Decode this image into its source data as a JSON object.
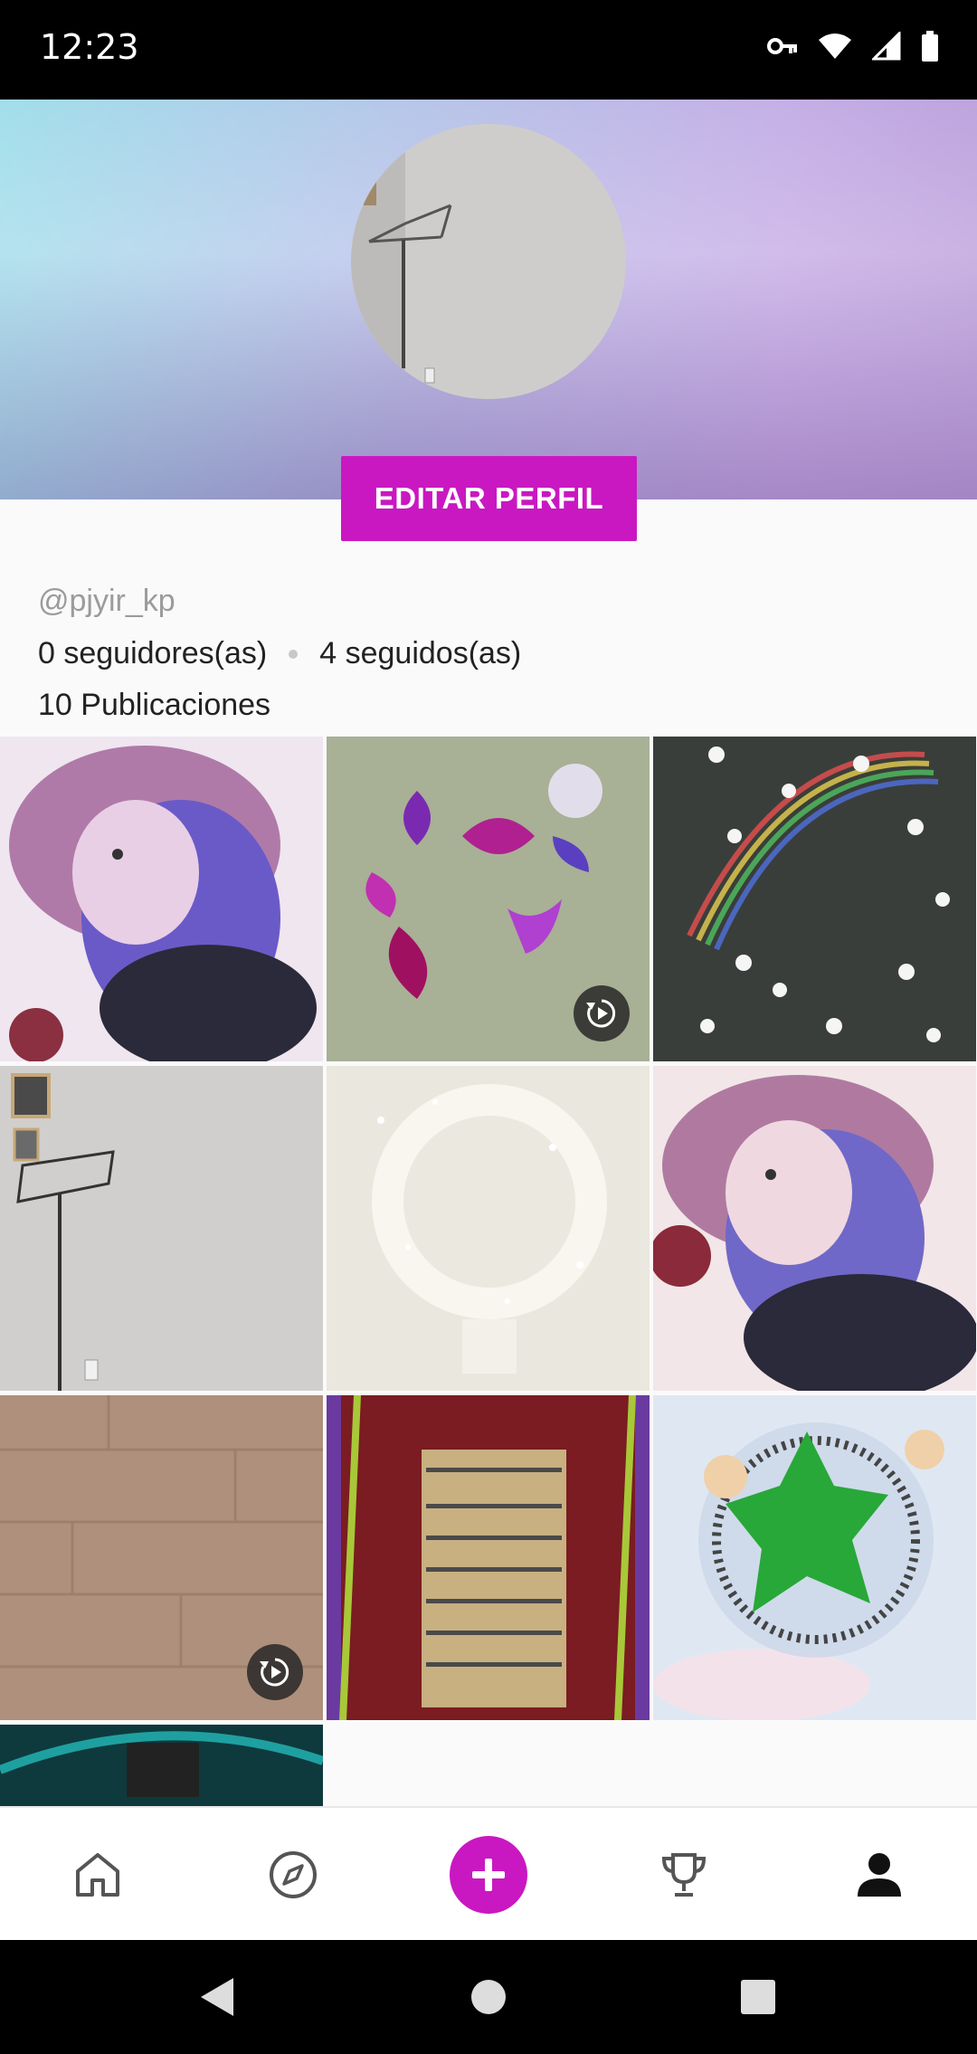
{
  "status_bar": {
    "time": "12:23"
  },
  "profile": {
    "edit_button": "EDITAR PERFIL",
    "username": "@pjyir_kp",
    "followers": "0 seguidores(as)",
    "following": "4 seguidos(as)",
    "posts": "10 Publicaciones"
  },
  "grid": {
    "tiles": [
      {
        "name": "post-1",
        "video": false
      },
      {
        "name": "post-2",
        "video": true
      },
      {
        "name": "post-3",
        "video": false
      },
      {
        "name": "post-4",
        "video": false
      },
      {
        "name": "post-5",
        "video": false
      },
      {
        "name": "post-6",
        "video": false
      },
      {
        "name": "post-7",
        "video": true
      },
      {
        "name": "post-8",
        "video": false
      },
      {
        "name": "post-9",
        "video": false
      },
      {
        "name": "post-10",
        "video": false
      }
    ]
  },
  "nav": [
    "home-icon",
    "explore-compass-icon",
    "create-plus-icon",
    "trophy-icon",
    "profile-icon"
  ],
  "colors": {
    "accent": "#c918c1"
  }
}
